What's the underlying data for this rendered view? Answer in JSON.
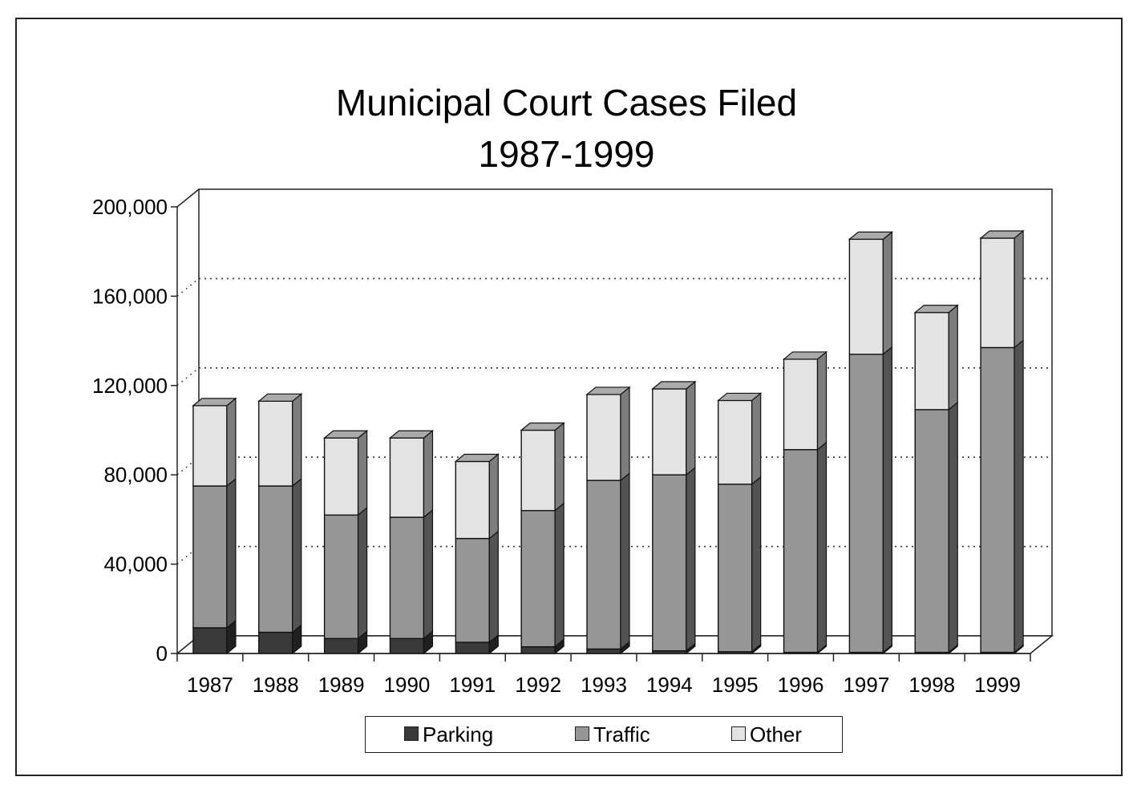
{
  "chart_data": {
    "type": "bar",
    "stacked": true,
    "title": "Municipal Court Cases Filed",
    "subtitle": "1987-1999",
    "categories": [
      "1987",
      "1988",
      "1989",
      "1990",
      "1991",
      "1992",
      "1993",
      "1994",
      "1995",
      "1996",
      "1997",
      "1998",
      "1999"
    ],
    "series": [
      {
        "name": "Parking",
        "color": "#3a3a3a",
        "values": [
          11500,
          9500,
          6700,
          6700,
          5000,
          3000,
          2000,
          1200,
          800,
          500,
          500,
          500,
          500
        ]
      },
      {
        "name": "Traffic",
        "color": "#969696",
        "values": [
          63500,
          65500,
          55300,
          54300,
          46500,
          61000,
          75500,
          78800,
          75000,
          90800,
          133500,
          108700,
          136500
        ]
      },
      {
        "name": "Other",
        "color": "#e3e3e3",
        "values": [
          36000,
          38000,
          34500,
          35500,
          34500,
          36000,
          38500,
          38500,
          37500,
          40500,
          51500,
          43500,
          49000
        ]
      }
    ],
    "ylim": [
      0,
      200000
    ],
    "yticks": [
      "0",
      "40,000",
      "80,000",
      "120,000",
      "160,000",
      "200,000"
    ],
    "ytick_values": [
      0,
      40000,
      80000,
      120000,
      160000,
      200000
    ],
    "xlabel": "",
    "ylabel": "",
    "grid": true,
    "legend_position": "bottom-center",
    "style": "3d-stacked-bars"
  }
}
